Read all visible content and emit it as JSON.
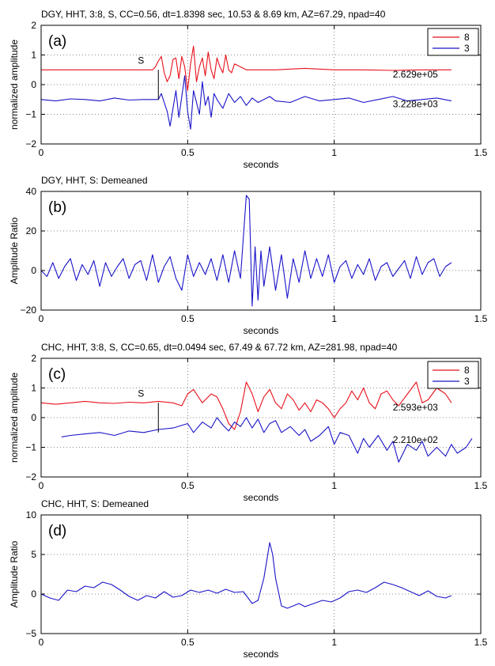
{
  "chart_data": [
    {
      "type": "line",
      "panel": "(a)",
      "title": "DGY, HHT, 3:8, S, CC=0.56,  dt=1.8398 sec,  10.53 & 8.69 km, AZ=67.29, npad=40",
      "xlabel": "seconds",
      "ylabel": "normalized amplitude",
      "xlim": [
        0,
        1.5
      ],
      "ylim": [
        -2,
        2
      ],
      "xticks": [
        0,
        0.5,
        1,
        1.5
      ],
      "xtick_labels": [
        "0",
        "0.5",
        "1",
        "1.5"
      ],
      "yticks": [
        -2,
        -1,
        0,
        1,
        2
      ],
      "ytick_labels": [
        "−2",
        "−1",
        "0",
        "1",
        "2"
      ],
      "grid": true,
      "legend": "top-right",
      "marker": {
        "label": "S",
        "x": 0.4,
        "y_from": -0.5,
        "y_to": 0.5
      },
      "annotations": [
        {
          "text": "2.629e+05",
          "x": 1.2,
          "y": 0.35
        },
        {
          "text": "3.228e+03",
          "x": 1.2,
          "y": -0.65
        }
      ],
      "series": [
        {
          "name": "8",
          "color": "#e8101a",
          "x": [
            0,
            0.3,
            0.38,
            0.39,
            0.4,
            0.41,
            0.42,
            0.43,
            0.44,
            0.45,
            0.46,
            0.47,
            0.48,
            0.49,
            0.5,
            0.51,
            0.52,
            0.53,
            0.54,
            0.55,
            0.56,
            0.57,
            0.58,
            0.59,
            0.6,
            0.61,
            0.62,
            0.63,
            0.64,
            0.65,
            0.66,
            0.7,
            0.8,
            0.9,
            1.0,
            1.1,
            1.2,
            1.3,
            1.4
          ],
          "y": [
            0.5,
            0.5,
            0.5,
            0.6,
            0.8,
            0.95,
            0.4,
            0.1,
            0.3,
            0.85,
            0.9,
            0.2,
            0.95,
            0.6,
            -0.2,
            0.7,
            1.3,
            0.1,
            0.6,
            0.9,
            0.3,
            1.1,
            0.5,
            0.2,
            0.9,
            0.6,
            0.4,
            1.0,
            0.5,
            0.4,
            0.7,
            0.5,
            0.5,
            0.55,
            0.5,
            0.5,
            0.48,
            0.5,
            0.5
          ]
        },
        {
          "name": "3",
          "color": "#1a14c8",
          "x": [
            0,
            0.05,
            0.1,
            0.15,
            0.2,
            0.25,
            0.3,
            0.35,
            0.4,
            0.41,
            0.42,
            0.43,
            0.44,
            0.45,
            0.46,
            0.47,
            0.48,
            0.49,
            0.5,
            0.51,
            0.52,
            0.53,
            0.54,
            0.55,
            0.56,
            0.57,
            0.58,
            0.59,
            0.6,
            0.62,
            0.64,
            0.66,
            0.68,
            0.7,
            0.72,
            0.74,
            0.76,
            0.78,
            0.8,
            0.85,
            0.9,
            0.95,
            1.0,
            1.05,
            1.1,
            1.15,
            1.2,
            1.25,
            1.3,
            1.35,
            1.4
          ],
          "y": [
            -0.5,
            -0.55,
            -0.48,
            -0.5,
            -0.55,
            -0.45,
            -0.52,
            -0.5,
            -0.5,
            -0.3,
            -0.6,
            -0.9,
            -1.4,
            -0.8,
            -0.2,
            -1.1,
            -0.4,
            0.3,
            -0.9,
            -1.5,
            -0.2,
            -0.6,
            -1.0,
            0.1,
            -0.7,
            -0.4,
            -1.1,
            -0.3,
            -0.5,
            -0.8,
            -0.3,
            -0.6,
            -0.4,
            -0.7,
            -0.45,
            -0.6,
            -0.5,
            -0.4,
            -0.55,
            -0.6,
            -0.4,
            -0.55,
            -0.5,
            -0.45,
            -0.6,
            -0.5,
            -0.4,
            -0.55,
            -0.5,
            -0.45,
            -0.55
          ]
        }
      ]
    },
    {
      "type": "line",
      "panel": "(b)",
      "title": "DGY, HHT, S: Demeaned",
      "xlabel": "seconds",
      "ylabel": "Amplitude Ratio",
      "xlim": [
        0,
        1.5
      ],
      "ylim": [
        -20,
        40
      ],
      "xticks": [
        0,
        0.5,
        1,
        1.5
      ],
      "xtick_labels": [
        "0",
        "0.5",
        "1",
        "1.5"
      ],
      "yticks": [
        -20,
        0,
        20,
        40
      ],
      "ytick_labels": [
        "−20",
        "0",
        "20",
        "40"
      ],
      "grid": true,
      "series": [
        {
          "name": "",
          "color": "#1a14c8",
          "x": [
            0,
            0.02,
            0.04,
            0.06,
            0.08,
            0.1,
            0.12,
            0.14,
            0.16,
            0.18,
            0.2,
            0.22,
            0.24,
            0.26,
            0.28,
            0.3,
            0.32,
            0.34,
            0.36,
            0.38,
            0.4,
            0.42,
            0.44,
            0.46,
            0.48,
            0.5,
            0.52,
            0.54,
            0.56,
            0.58,
            0.6,
            0.62,
            0.64,
            0.66,
            0.68,
            0.7,
            0.71,
            0.72,
            0.73,
            0.74,
            0.75,
            0.76,
            0.78,
            0.8,
            0.82,
            0.84,
            0.86,
            0.88,
            0.9,
            0.92,
            0.94,
            0.96,
            0.98,
            1.0,
            1.02,
            1.04,
            1.06,
            1.08,
            1.1,
            1.12,
            1.14,
            1.16,
            1.18,
            1.2,
            1.22,
            1.24,
            1.26,
            1.28,
            1.3,
            1.32,
            1.34,
            1.36,
            1.38,
            1.4
          ],
          "y": [
            0,
            -3,
            4,
            -4,
            2,
            6,
            -5,
            3,
            -2,
            5,
            -8,
            4,
            -3,
            2,
            6,
            -4,
            3,
            5,
            -5,
            8,
            -6,
            2,
            7,
            -4,
            -10,
            8,
            -3,
            4,
            -2,
            6,
            -5,
            8,
            -6,
            10,
            -4,
            38,
            36,
            -18,
            12,
            -15,
            10,
            -8,
            12,
            -10,
            8,
            -14,
            6,
            -6,
            10,
            -4,
            6,
            -3,
            8,
            -6,
            2,
            5,
            -4,
            3,
            -2,
            6,
            -5,
            2,
            4,
            -3,
            1,
            5,
            -4,
            7,
            -2,
            4,
            6,
            -3,
            2,
            4
          ]
        }
      ]
    },
    {
      "type": "line",
      "panel": "(c)",
      "title": "CHC, HHT, 3:8, S, CC=0.65,  dt=0.0494 sec,  67.49 & 67.72 km, AZ=281.98, npad=40",
      "xlabel": "seconds",
      "ylabel": "normalized amplitude",
      "xlim": [
        0,
        1.5
      ],
      "ylim": [
        -2,
        2
      ],
      "xticks": [
        0,
        0.5,
        1,
        1.5
      ],
      "xtick_labels": [
        "0",
        "0.5",
        "1",
        "1.5"
      ],
      "yticks": [
        -2,
        -1,
        0,
        1,
        2
      ],
      "ytick_labels": [
        "−2",
        "−1",
        "0",
        "1",
        "2"
      ],
      "grid": true,
      "legend": "top-right",
      "marker": {
        "label": "S",
        "x": 0.4,
        "y_from": -0.5,
        "y_to": 0.5
      },
      "annotations": [
        {
          "text": "2.593e+03",
          "x": 1.2,
          "y": 0.35
        },
        {
          "text": "2.210e+02",
          "x": 1.2,
          "y": -0.75
        }
      ],
      "series": [
        {
          "name": "8",
          "color": "#e8101a",
          "x": [
            0,
            0.05,
            0.1,
            0.15,
            0.2,
            0.25,
            0.3,
            0.35,
            0.4,
            0.45,
            0.48,
            0.5,
            0.52,
            0.55,
            0.58,
            0.6,
            0.62,
            0.64,
            0.66,
            0.68,
            0.7,
            0.72,
            0.74,
            0.76,
            0.78,
            0.8,
            0.82,
            0.84,
            0.86,
            0.88,
            0.9,
            0.92,
            0.94,
            0.96,
            0.98,
            1.0,
            1.02,
            1.04,
            1.06,
            1.08,
            1.1,
            1.12,
            1.14,
            1.16,
            1.18,
            1.2,
            1.22,
            1.25,
            1.28,
            1.3,
            1.32,
            1.35,
            1.38,
            1.4
          ],
          "y": [
            0.5,
            0.45,
            0.5,
            0.55,
            0.5,
            0.48,
            0.52,
            0.5,
            0.55,
            0.5,
            0.4,
            0.8,
            0.95,
            0.5,
            0.8,
            0.7,
            0.3,
            -0.2,
            -0.4,
            0.2,
            1.2,
            0.8,
            0.2,
            0.7,
            0.95,
            0.5,
            0.3,
            0.8,
            0.6,
            0.25,
            0.5,
            0.2,
            0.6,
            0.5,
            0.3,
            0.0,
            0.3,
            0.5,
            0.9,
            0.6,
            1.0,
            0.5,
            0.3,
            0.8,
            0.9,
            0.6,
            0.4,
            0.8,
            1.2,
            0.5,
            0.6,
            1.0,
            0.8,
            0.5
          ]
        },
        {
          "name": "3",
          "color": "#1a14c8",
          "x": [
            0.07,
            0.1,
            0.15,
            0.2,
            0.25,
            0.3,
            0.35,
            0.4,
            0.45,
            0.5,
            0.52,
            0.55,
            0.58,
            0.6,
            0.62,
            0.64,
            0.66,
            0.68,
            0.7,
            0.72,
            0.74,
            0.76,
            0.78,
            0.8,
            0.82,
            0.85,
            0.88,
            0.9,
            0.92,
            0.95,
            0.98,
            1.0,
            1.02,
            1.05,
            1.08,
            1.1,
            1.12,
            1.15,
            1.18,
            1.2,
            1.22,
            1.25,
            1.28,
            1.3,
            1.32,
            1.35,
            1.38,
            1.4,
            1.42,
            1.45,
            1.47
          ],
          "y": [
            -0.65,
            -0.6,
            -0.55,
            -0.5,
            -0.6,
            -0.45,
            -0.5,
            -0.4,
            -0.35,
            -0.2,
            -0.5,
            -0.15,
            -0.35,
            0.0,
            -0.25,
            -0.45,
            -0.15,
            -0.3,
            0.0,
            -0.35,
            -0.05,
            -0.5,
            -0.2,
            -0.1,
            -0.5,
            -0.3,
            -0.6,
            -0.4,
            -0.8,
            -0.6,
            -0.3,
            -0.9,
            -0.5,
            -0.6,
            -1.2,
            -0.7,
            -1.0,
            -0.6,
            -1.1,
            -0.8,
            -1.5,
            -0.9,
            -1.1,
            -0.8,
            -1.3,
            -1.0,
            -1.3,
            -0.9,
            -1.2,
            -1.0,
            -0.7
          ]
        }
      ]
    },
    {
      "type": "line",
      "panel": "(d)",
      "title": "CHC, HHT, S: Demeaned",
      "xlabel": "seconds",
      "ylabel": "Amplitude Ratio",
      "xlim": [
        0,
        1.5
      ],
      "ylim": [
        -5,
        10
      ],
      "xticks": [
        0,
        0.5,
        1,
        1.5
      ],
      "xtick_labels": [
        "0",
        "0.5",
        "1",
        "1.5"
      ],
      "yticks": [
        -5,
        0,
        5,
        10
      ],
      "ytick_labels": [
        "−5",
        "0",
        "5",
        "10"
      ],
      "grid": true,
      "series": [
        {
          "name": "",
          "color": "#1a14c8",
          "x": [
            0,
            0.03,
            0.06,
            0.09,
            0.12,
            0.15,
            0.18,
            0.21,
            0.24,
            0.27,
            0.3,
            0.33,
            0.36,
            0.39,
            0.42,
            0.45,
            0.48,
            0.51,
            0.54,
            0.57,
            0.6,
            0.63,
            0.66,
            0.69,
            0.72,
            0.74,
            0.76,
            0.78,
            0.79,
            0.8,
            0.82,
            0.84,
            0.86,
            0.88,
            0.9,
            0.93,
            0.96,
            0.99,
            1.02,
            1.05,
            1.08,
            1.11,
            1.14,
            1.17,
            1.2,
            1.23,
            1.26,
            1.29,
            1.32,
            1.35,
            1.38,
            1.4
          ],
          "y": [
            0,
            -0.5,
            -0.8,
            0.5,
            0.3,
            1.0,
            0.8,
            1.5,
            1.2,
            0.5,
            -0.3,
            -0.8,
            -0.2,
            -0.5,
            0.3,
            -0.4,
            -0.2,
            0.5,
            0.2,
            0.5,
            0.1,
            0.6,
            0.2,
            0.3,
            -1.2,
            -0.8,
            2.0,
            6.5,
            5.0,
            2.0,
            -1.5,
            -1.8,
            -1.5,
            -1.2,
            -1.6,
            -1.2,
            -0.8,
            -1.0,
            -0.5,
            0.3,
            0.5,
            0.2,
            0.8,
            1.5,
            1.2,
            0.8,
            0.3,
            -0.2,
            0.4,
            -0.3,
            -0.5,
            -0.2
          ]
        }
      ]
    }
  ]
}
